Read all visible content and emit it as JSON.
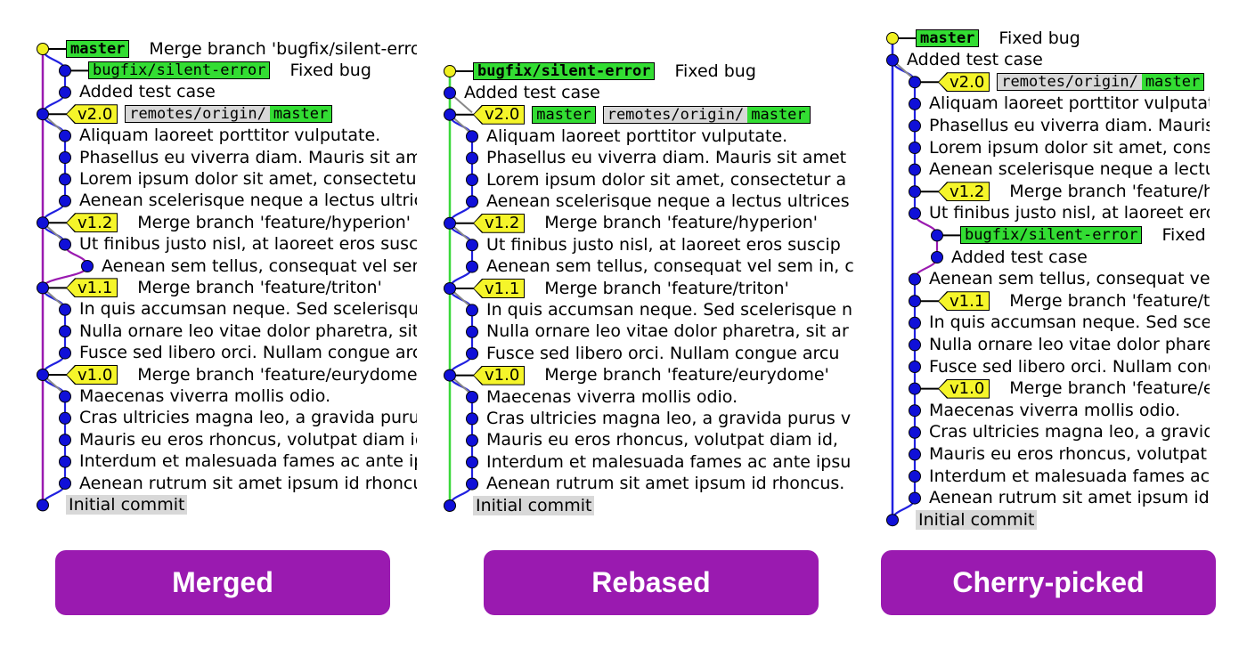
{
  "colors": {
    "branch_bg": "#33dd33",
    "tag_bg": "#f5f52a",
    "remote_bg": "#d8d8d8",
    "button_bg": "#9a1ab0",
    "dot": "#1010d8",
    "head_dot": "#f0f020"
  },
  "panels": [
    {
      "key": "merged",
      "button_label": "Merged",
      "rows": [
        {
          "refs": [
            {
              "kind": "head",
              "text": "master"
            }
          ],
          "message": "Merge branch 'bugfix/silent-error'"
        },
        {
          "refs": [
            {
              "kind": "branch",
              "text": "bugfix/silent-error"
            }
          ],
          "message": "Fixed bug"
        },
        {
          "refs": [],
          "message": "Added test case"
        },
        {
          "refs": [
            {
              "kind": "tag",
              "text": "v2.0"
            },
            {
              "kind": "remote",
              "prefix": "remotes/origin/",
              "text": "master"
            }
          ],
          "message": ""
        },
        {
          "refs": [],
          "message": "Aliquam laoreet porttitor vulputate."
        },
        {
          "refs": [],
          "message": "Phasellus eu viverra diam. Mauris sit amet"
        },
        {
          "refs": [],
          "message": "Lorem ipsum dolor sit amet, consectetur a"
        },
        {
          "refs": [],
          "message": "Aenean scelerisque neque a lectus ultrices"
        },
        {
          "refs": [
            {
              "kind": "tag",
              "text": "v1.2"
            }
          ],
          "message": "Merge branch 'feature/hyperion'"
        },
        {
          "refs": [],
          "message": "Ut finibus justo nisl, at laoreet eros suscip"
        },
        {
          "refs": [],
          "message": "Aenean sem tellus, consequat vel sem in, c"
        },
        {
          "refs": [
            {
              "kind": "tag",
              "text": "v1.1"
            }
          ],
          "message": "Merge branch 'feature/triton'"
        },
        {
          "refs": [],
          "message": "In quis accumsan neque. Sed scelerisque n"
        },
        {
          "refs": [],
          "message": "Nulla ornare leo vitae dolor pharetra, sit ar"
        },
        {
          "refs": [],
          "message": "Fusce sed libero orci. Nullam congue arcu"
        },
        {
          "refs": [
            {
              "kind": "tag",
              "text": "v1.0"
            }
          ],
          "message": "Merge branch 'feature/eurydome'"
        },
        {
          "refs": [],
          "message": "Maecenas viverra mollis odio."
        },
        {
          "refs": [],
          "message": "Cras ultricies magna leo, a gravida purus v"
        },
        {
          "refs": [],
          "message": "Mauris eu eros rhoncus, volutpat diam id,"
        },
        {
          "refs": [],
          "message": "Interdum et malesuada fames ac ante ipsu"
        },
        {
          "refs": [],
          "message": "Aenean rutrum sit amet ipsum id rhoncus."
        },
        {
          "refs": [
            {
              "kind": "plain",
              "text": "Initial commit"
            }
          ],
          "message": ""
        }
      ]
    },
    {
      "key": "rebased",
      "button_label": "Rebased",
      "rows": [
        {
          "refs": [
            {
              "kind": "headbranch",
              "text": "bugfix/silent-error"
            }
          ],
          "message": "Fixed bug"
        },
        {
          "refs": [],
          "message": "Added test case"
        },
        {
          "refs": [
            {
              "kind": "tag",
              "text": "v2.0"
            },
            {
              "kind": "branch",
              "text": "master"
            },
            {
              "kind": "remote",
              "prefix": "remotes/origin/",
              "text": "master"
            }
          ],
          "message": ""
        },
        {
          "refs": [],
          "message": "Aliquam laoreet porttitor vulputate."
        },
        {
          "refs": [],
          "message": "Phasellus eu viverra diam. Mauris sit amet"
        },
        {
          "refs": [],
          "message": "Lorem ipsum dolor sit amet, consectetur a"
        },
        {
          "refs": [],
          "message": "Aenean scelerisque neque a lectus ultrices"
        },
        {
          "refs": [
            {
              "kind": "tag",
              "text": "v1.2"
            }
          ],
          "message": "Merge branch 'feature/hyperion'"
        },
        {
          "refs": [],
          "message": "Ut finibus justo nisl, at laoreet eros suscip"
        },
        {
          "refs": [],
          "message": "Aenean sem tellus, consequat vel sem in, c"
        },
        {
          "refs": [
            {
              "kind": "tag",
              "text": "v1.1"
            }
          ],
          "message": "Merge branch 'feature/triton'"
        },
        {
          "refs": [],
          "message": "In quis accumsan neque. Sed scelerisque n"
        },
        {
          "refs": [],
          "message": "Nulla ornare leo vitae dolor pharetra, sit ar"
        },
        {
          "refs": [],
          "message": "Fusce sed libero orci. Nullam congue arcu"
        },
        {
          "refs": [
            {
              "kind": "tag",
              "text": "v1.0"
            }
          ],
          "message": "Merge branch 'feature/eurydome'"
        },
        {
          "refs": [],
          "message": "Maecenas viverra mollis odio."
        },
        {
          "refs": [],
          "message": "Cras ultricies magna leo, a gravida purus v"
        },
        {
          "refs": [],
          "message": "Mauris eu eros rhoncus, volutpat diam id,"
        },
        {
          "refs": [],
          "message": "Interdum et malesuada fames ac ante ipsu"
        },
        {
          "refs": [],
          "message": "Aenean rutrum sit amet ipsum id rhoncus."
        },
        {
          "refs": [
            {
              "kind": "plain",
              "text": "Initial commit"
            }
          ],
          "message": ""
        }
      ]
    },
    {
      "key": "cherry",
      "button_label": "Cherry-picked",
      "rows": [
        {
          "refs": [
            {
              "kind": "head",
              "text": "master"
            }
          ],
          "message": "Fixed bug"
        },
        {
          "refs": [],
          "message": "Added test case"
        },
        {
          "refs": [
            {
              "kind": "tag",
              "text": "v2.0"
            },
            {
              "kind": "remote",
              "prefix": "remotes/origin/",
              "text": "master"
            }
          ],
          "message": ""
        },
        {
          "refs": [],
          "message": "Aliquam laoreet porttitor vulputate."
        },
        {
          "refs": [],
          "message": "Phasellus eu viverra diam. Mauris sit amet"
        },
        {
          "refs": [],
          "message": "Lorem ipsum dolor sit amet, consectetur a"
        },
        {
          "refs": [],
          "message": "Aenean scelerisque neque a lectus ultrices"
        },
        {
          "refs": [
            {
              "kind": "tag",
              "text": "v1.2"
            }
          ],
          "message": "Merge branch 'feature/hyperion'"
        },
        {
          "refs": [],
          "message": "Ut finibus justo nisl, at laoreet eros suscip"
        },
        {
          "refs": [
            {
              "kind": "branch",
              "text": "bugfix/silent-error"
            }
          ],
          "message": "Fixed bug"
        },
        {
          "refs": [],
          "message": "Added test case"
        },
        {
          "refs": [],
          "message": "Aenean sem tellus, consequat vel sem in, c"
        },
        {
          "refs": [
            {
              "kind": "tag",
              "text": "v1.1"
            }
          ],
          "message": "Merge branch 'feature/triton'"
        },
        {
          "refs": [],
          "message": "In quis accumsan neque. Sed scelerisque n"
        },
        {
          "refs": [],
          "message": "Nulla ornare leo vitae dolor pharetra, sit ar"
        },
        {
          "refs": [],
          "message": "Fusce sed libero orci. Nullam congue arcu"
        },
        {
          "refs": [
            {
              "kind": "tag",
              "text": "v1.0"
            }
          ],
          "message": "Merge branch 'feature/eurydome'"
        },
        {
          "refs": [],
          "message": "Maecenas viverra mollis odio."
        },
        {
          "refs": [],
          "message": "Cras ultricies magna leo, a gravida purus v"
        },
        {
          "refs": [],
          "message": "Mauris eu eros rhoncus, volutpat diam id,"
        },
        {
          "refs": [],
          "message": "Interdum et malesuada fames ac ante ipsu"
        },
        {
          "refs": [],
          "message": "Aenean rutrum sit amet ipsum id rhoncus."
        },
        {
          "refs": [
            {
              "kind": "plain",
              "text": "Initial commit"
            }
          ],
          "message": ""
        }
      ]
    }
  ]
}
